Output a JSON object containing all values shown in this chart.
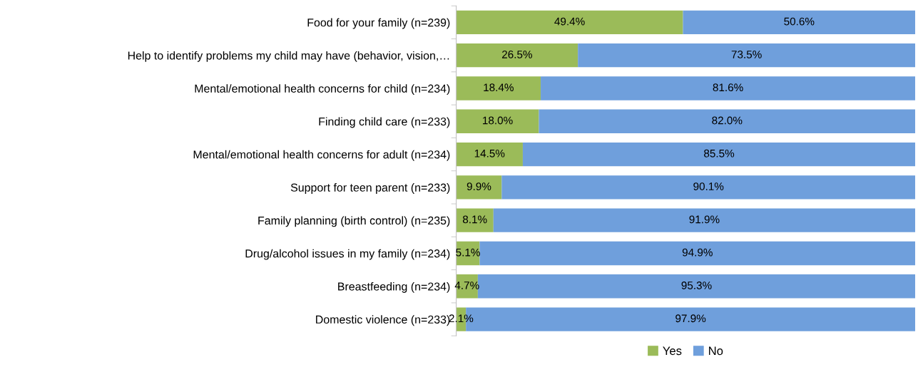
{
  "chart_data": {
    "type": "bar",
    "orientation": "horizontal",
    "stacked": true,
    "categories": [
      "Food for your family (n=239)",
      "Help to identify problems my child may have (behavior, vision,…",
      "Mental/emotional health concerns for child (n=234)",
      "Finding child care (n=233)",
      "Mental/emotional health concerns for adult (n=234)",
      "Support for teen parent (n=233)",
      "Family planning (birth control) (n=235)",
      "Drug/alcohol issues in my family (n=234)",
      "Breastfeeding (n=234)",
      "Domestic violence (n=233)"
    ],
    "series": [
      {
        "name": "Yes",
        "color": "#9bbb59",
        "values": [
          49.4,
          26.5,
          18.4,
          18.0,
          14.5,
          9.9,
          8.1,
          5.1,
          4.7,
          2.1
        ],
        "value_labels": [
          "49.4%",
          "26.5%",
          "18.4%",
          "18.0%",
          "14.5%",
          "9.9%",
          "8.1%",
          "5.1%",
          "4.7%",
          "2.1%"
        ]
      },
      {
        "name": "No",
        "color": "#6f9fdc",
        "values": [
          50.6,
          73.5,
          81.6,
          82.0,
          85.5,
          90.1,
          91.9,
          94.9,
          95.3,
          97.9
        ],
        "value_labels": [
          "50.6%",
          "73.5%",
          "81.6%",
          "82.0%",
          "85.5%",
          "90.1%",
          "91.9%",
          "94.9%",
          "95.3%",
          "97.9%"
        ]
      }
    ],
    "tick_labels": "y",
    "legend": "bottom"
  }
}
